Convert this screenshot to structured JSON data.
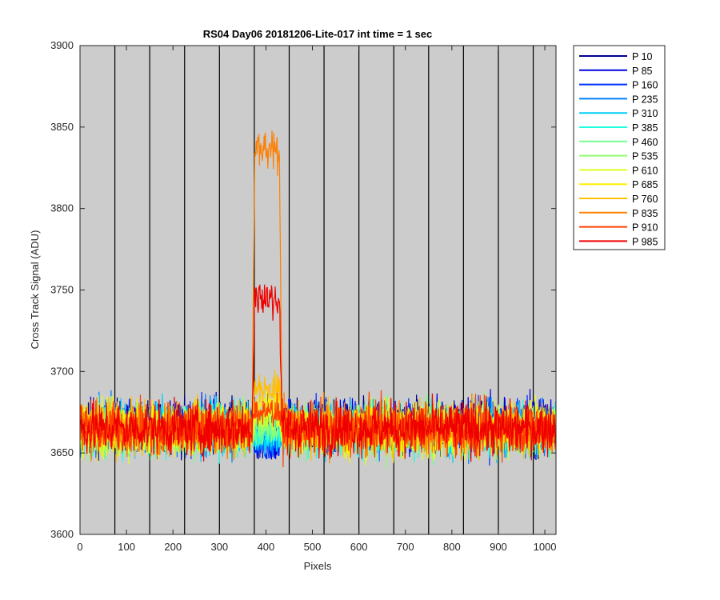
{
  "chart_data": {
    "type": "line",
    "title": "RS04 Day06 20181206-Lite-017 int time = 1 sec",
    "xlabel": "Pixels",
    "ylabel": "Cross Track Signal (ADU)",
    "xlim": [
      0,
      1024
    ],
    "ylim": [
      3600,
      3900
    ],
    "xticks": [
      0,
      100,
      200,
      300,
      400,
      500,
      600,
      700,
      800,
      900,
      1000
    ],
    "yticks": [
      3600,
      3650,
      3700,
      3750,
      3800,
      3850,
      3900
    ],
    "background_color": "#cccccc",
    "grid": false,
    "legend_position": "outside-top-right",
    "vertical_lines": {
      "x": [
        75,
        150,
        225,
        300,
        375,
        450,
        525,
        600,
        675,
        750,
        825,
        900,
        975
      ],
      "color": "#000000"
    },
    "noise": {
      "baseline": 3665,
      "amplitude": 8,
      "min": 3629,
      "max": 3692,
      "step": 1
    },
    "peak_region": {
      "x_start": 370,
      "x_end": 435
    },
    "series": [
      {
        "name": "P 10",
        "color": "#00008f",
        "baseline": 3666,
        "peak": null
      },
      {
        "name": "P 85",
        "color": "#0000df",
        "baseline": 3667,
        "peak": 3655
      },
      {
        "name": "P 160",
        "color": "#0030ff",
        "baseline": 3666,
        "peak": 3655
      },
      {
        "name": "P 235",
        "color": "#0080ff",
        "baseline": 3665,
        "peak": 3657
      },
      {
        "name": "P 310",
        "color": "#00cfff",
        "baseline": 3665,
        "peak": 3660
      },
      {
        "name": "P 385",
        "color": "#20ffdf",
        "baseline": 3664,
        "peak": 3662
      },
      {
        "name": "P 460",
        "color": "#70ff8f",
        "baseline": 3664,
        "peak": 3665
      },
      {
        "name": "P 535",
        "color": "#90ff70",
        "baseline": 3664,
        "peak": 3668
      },
      {
        "name": "P 610",
        "color": "#dfff20",
        "baseline": 3664,
        "peak": 3672
      },
      {
        "name": "P 685",
        "color": "#ffef00",
        "baseline": 3665,
        "peak": 3680
      },
      {
        "name": "P 760",
        "color": "#ffbf00",
        "baseline": 3665,
        "peak": 3690
      },
      {
        "name": "P 835",
        "color": "#ff8000",
        "baseline": 3665,
        "peak": 3835
      },
      {
        "name": "P 910",
        "color": "#ff4000",
        "baseline": 3665,
        "peak": 3675
      },
      {
        "name": "P 985",
        "color": "#ef0000",
        "baseline": 3665,
        "peak": 3745
      }
    ]
  }
}
